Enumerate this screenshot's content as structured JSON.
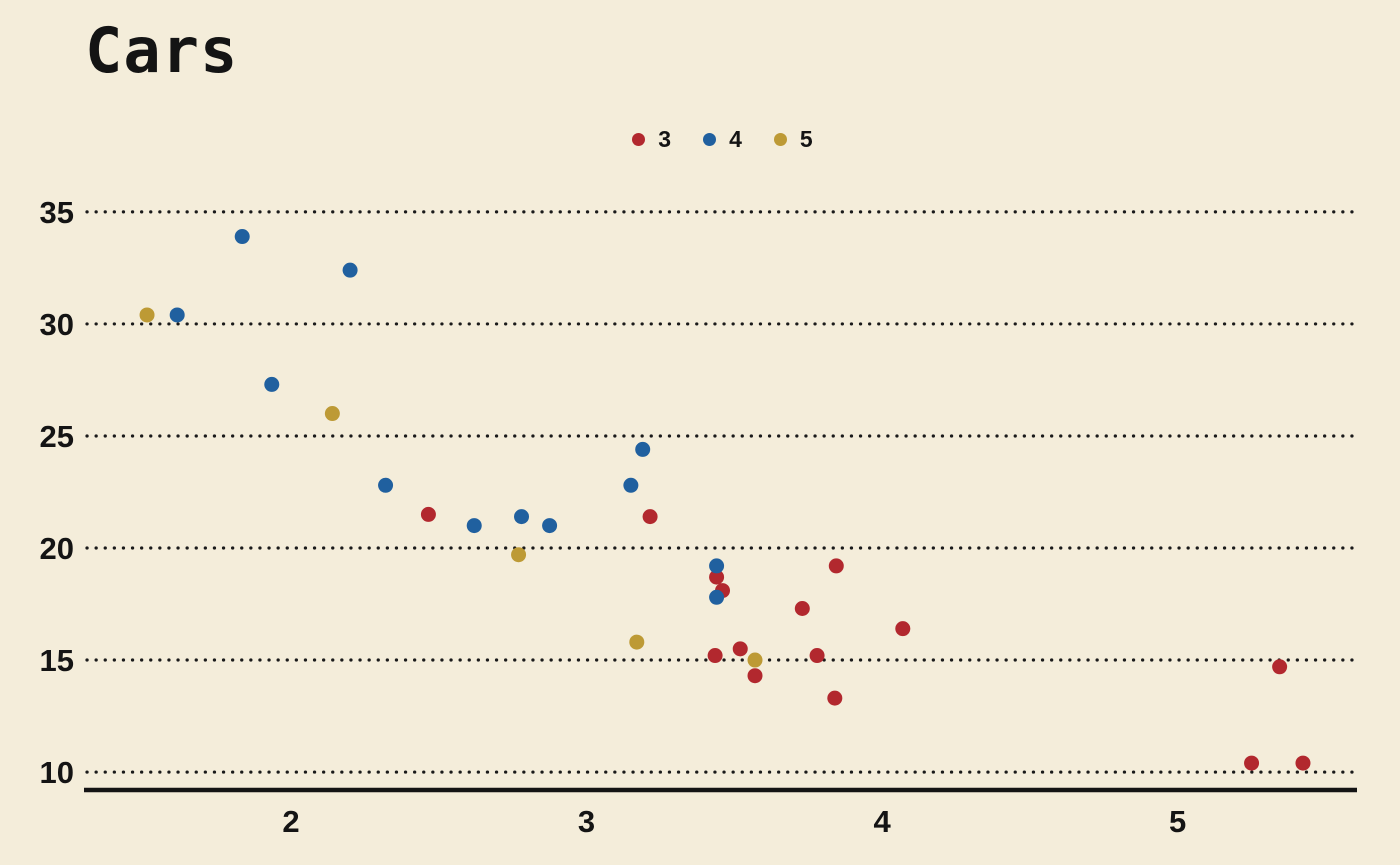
{
  "chart_data": {
    "type": "scatter",
    "title": "Cars",
    "xlabel": "",
    "ylabel": "",
    "legend_position": "top-center",
    "grid": "horizontal-dotted",
    "background": "#f4edda",
    "text_color": "#141414",
    "axis_color": "#141414",
    "grid_color": "#1a1a1a",
    "xticks": [
      2,
      3,
      4,
      5
    ],
    "yticks": [
      10,
      15,
      20,
      25,
      30,
      35
    ],
    "xlim": [
      1.32,
      5.6
    ],
    "ylim": [
      9.2,
      36.2
    ],
    "series": [
      {
        "name": "3",
        "color": "#b2282e",
        "points": [
          [
            2.465,
            21.5
          ],
          [
            3.215,
            21.4
          ],
          [
            3.44,
            18.7
          ],
          [
            3.46,
            18.1
          ],
          [
            3.435,
            15.2
          ],
          [
            3.52,
            15.5
          ],
          [
            3.57,
            14.3
          ],
          [
            3.73,
            17.3
          ],
          [
            3.78,
            15.2
          ],
          [
            3.84,
            13.3
          ],
          [
            3.845,
            19.2
          ],
          [
            4.07,
            16.4
          ],
          [
            5.25,
            10.4
          ],
          [
            5.345,
            14.7
          ],
          [
            5.424,
            10.4
          ]
        ]
      },
      {
        "name": "4",
        "color": "#20609f",
        "points": [
          [
            1.615,
            30.4
          ],
          [
            1.835,
            33.9
          ],
          [
            1.935,
            27.3
          ],
          [
            2.2,
            32.4
          ],
          [
            2.32,
            22.8
          ],
          [
            2.62,
            21.0
          ],
          [
            2.78,
            21.4
          ],
          [
            2.875,
            21.0
          ],
          [
            3.15,
            22.8
          ],
          [
            3.19,
            24.4
          ],
          [
            3.44,
            19.2
          ],
          [
            3.44,
            17.8
          ]
        ]
      },
      {
        "name": "5",
        "color": "#bd9a35",
        "points": [
          [
            1.513,
            30.4
          ],
          [
            2.14,
            26.0
          ],
          [
            2.77,
            19.7
          ],
          [
            3.17,
            15.8
          ],
          [
            3.57,
            15.0
          ]
        ]
      }
    ]
  }
}
